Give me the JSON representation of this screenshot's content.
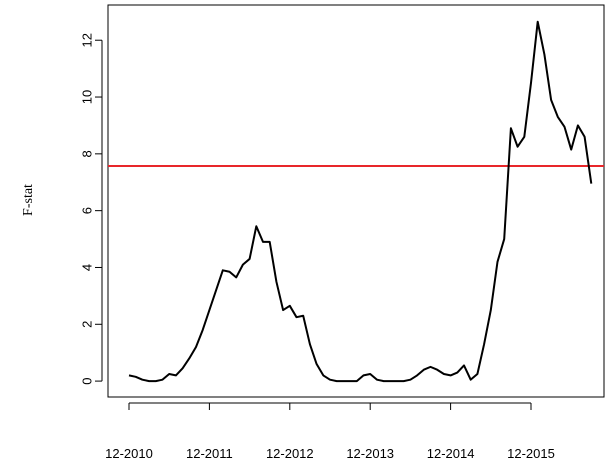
{
  "chart_data": {
    "type": "line",
    "y_label": "F-stat",
    "x": [
      "12-2010",
      "01-2011",
      "02-2011",
      "03-2011",
      "04-2011",
      "05-2011",
      "06-2011",
      "07-2011",
      "08-2011",
      "09-2011",
      "10-2011",
      "11-2011",
      "12-2011",
      "01-2012",
      "02-2012",
      "03-2012",
      "04-2012",
      "05-2012",
      "06-2012",
      "07-2012",
      "08-2012",
      "09-2012",
      "10-2012",
      "11-2012",
      "12-2012",
      "01-2013",
      "02-2013",
      "03-2013",
      "04-2013",
      "05-2013",
      "06-2013",
      "07-2013",
      "08-2013",
      "09-2013",
      "10-2013",
      "11-2013",
      "12-2013",
      "01-2014",
      "02-2014",
      "03-2014",
      "04-2014",
      "05-2014",
      "06-2014",
      "07-2014",
      "08-2014",
      "09-2014",
      "10-2014",
      "11-2014",
      "12-2014",
      "01-2015",
      "02-2015",
      "03-2015",
      "04-2015",
      "05-2015",
      "06-2015",
      "07-2015",
      "08-2015",
      "09-2015",
      "10-2015",
      "11-2015",
      "12-2015",
      "01-2016",
      "02-2016",
      "03-2016",
      "04-2016",
      "05-2016",
      "06-2016",
      "07-2016",
      "08-2016",
      "09-2016"
    ],
    "values": [
      0.2,
      0.15,
      0.05,
      0.0,
      0.0,
      0.05,
      0.25,
      0.2,
      0.45,
      0.8,
      1.2,
      1.8,
      2.5,
      3.2,
      3.9,
      3.85,
      3.65,
      4.1,
      4.3,
      5.45,
      4.9,
      4.9,
      3.5,
      2.5,
      2.65,
      2.25,
      2.3,
      1.3,
      0.6,
      0.2,
      0.05,
      0.0,
      0.0,
      0.0,
      0.0,
      0.2,
      0.25,
      0.05,
      0.0,
      0.0,
      0.0,
      0.0,
      0.05,
      0.2,
      0.4,
      0.5,
      0.4,
      0.25,
      0.2,
      0.3,
      0.55,
      0.05,
      0.25,
      1.3,
      2.5,
      4.2,
      5.0,
      8.9,
      8.25,
      8.6,
      10.5,
      12.65,
      11.5,
      9.9,
      9.3,
      8.95,
      8.15,
      9.0,
      8.6,
      6.95
    ],
    "color": "#000000",
    "xticks": [
      "12-2010",
      "12-2011",
      "12-2012",
      "12-2013",
      "12-2014",
      "12-2015"
    ],
    "ylim": [
      -0.56,
      13.24
    ],
    "yticks": [
      0,
      2,
      4,
      6,
      8,
      10,
      12
    ],
    "reference_line": {
      "value": 7.57,
      "color": "#e8262a"
    }
  }
}
